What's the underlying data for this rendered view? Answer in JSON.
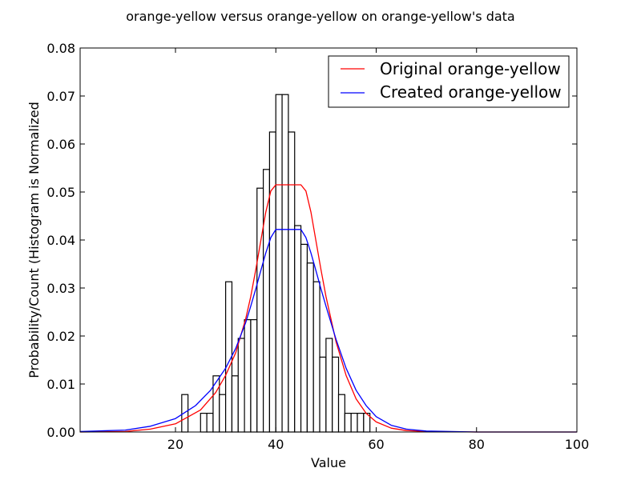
{
  "chart_data": {
    "type": "bar",
    "title": "orange-yellow versus orange-yellow on orange-yellow's data",
    "xlabel": "Value",
    "ylabel": "Probability/Count (Histogram is Normalized",
    "xlim": [
      1,
      100
    ],
    "ylim": [
      0,
      0.08
    ],
    "xticks": [
      "20",
      "40",
      "60",
      "80",
      "100"
    ],
    "yticks": [
      "0.00",
      "0.01",
      "0.02",
      "0.03",
      "0.04",
      "0.05",
      "0.06",
      "0.07",
      "0.08"
    ],
    "grid": false,
    "legend_position": "top-right",
    "bin_width": 1.25,
    "histogram": [
      {
        "start": 21.25,
        "value": 0.0078
      },
      {
        "start": 22.5,
        "value": 0.0
      },
      {
        "start": 23.75,
        "value": 0.0
      },
      {
        "start": 25.0,
        "value": 0.0039
      },
      {
        "start": 26.25,
        "value": 0.0039
      },
      {
        "start": 27.5,
        "value": 0.0117
      },
      {
        "start": 28.75,
        "value": 0.0078
      },
      {
        "start": 30.0,
        "value": 0.0313
      },
      {
        "start": 31.25,
        "value": 0.0117
      },
      {
        "start": 32.5,
        "value": 0.0195
      },
      {
        "start": 33.75,
        "value": 0.0234
      },
      {
        "start": 35.0,
        "value": 0.0234
      },
      {
        "start": 36.25,
        "value": 0.0508
      },
      {
        "start": 37.5,
        "value": 0.0547
      },
      {
        "start": 38.75,
        "value": 0.0625
      },
      {
        "start": 40.0,
        "value": 0.0703
      },
      {
        "start": 41.25,
        "value": 0.0703
      },
      {
        "start": 42.5,
        "value": 0.0625
      },
      {
        "start": 43.75,
        "value": 0.043
      },
      {
        "start": 45.0,
        "value": 0.0391
      },
      {
        "start": 46.25,
        "value": 0.0352
      },
      {
        "start": 47.5,
        "value": 0.0313
      },
      {
        "start": 48.75,
        "value": 0.0156
      },
      {
        "start": 50.0,
        "value": 0.0195
      },
      {
        "start": 51.25,
        "value": 0.0156
      },
      {
        "start": 52.5,
        "value": 0.0078
      },
      {
        "start": 53.75,
        "value": 0.0039
      },
      {
        "start": 55.0,
        "value": 0.0039
      },
      {
        "start": 56.25,
        "value": 0.0039
      },
      {
        "start": 57.5,
        "value": 0.0039
      }
    ],
    "series": [
      {
        "name": "Original orange-yellow",
        "color": "#ff0000",
        "x": [
          1,
          10,
          15,
          20,
          25,
          28,
          30,
          32,
          34,
          35,
          36,
          37,
          38,
          39,
          40,
          42,
          44,
          45,
          46,
          47,
          48,
          49,
          50,
          52,
          54,
          56,
          58,
          60,
          63,
          66,
          70,
          80,
          100
        ],
        "y": [
          0.0,
          0.0001,
          0.0006,
          0.0017,
          0.0046,
          0.0082,
          0.0118,
          0.0165,
          0.0236,
          0.0282,
          0.0338,
          0.0398,
          0.0458,
          0.0502,
          0.0515,
          0.0515,
          0.0515,
          0.0515,
          0.0502,
          0.0458,
          0.0398,
          0.0338,
          0.0282,
          0.0188,
          0.0118,
          0.0069,
          0.0039,
          0.0021,
          0.0008,
          0.0003,
          0.0001,
          0.0,
          0.0
        ]
      },
      {
        "name": "Created orange-yellow",
        "color": "#0000ff",
        "x": [
          1,
          10,
          15,
          20,
          24,
          27,
          30,
          32,
          34,
          35,
          36,
          37,
          38,
          39,
          40,
          42,
          44,
          45,
          46,
          47,
          48,
          49,
          50,
          52,
          54,
          56,
          58,
          60,
          63,
          66,
          70,
          80,
          100
        ],
        "y": [
          0.0001,
          0.0004,
          0.0012,
          0.0028,
          0.0055,
          0.0087,
          0.0133,
          0.0174,
          0.0228,
          0.0262,
          0.0298,
          0.0336,
          0.0373,
          0.0405,
          0.0422,
          0.0422,
          0.0422,
          0.0422,
          0.0405,
          0.0373,
          0.0336,
          0.0298,
          0.0262,
          0.0193,
          0.0133,
          0.0087,
          0.0055,
          0.0032,
          0.0014,
          0.0006,
          0.0002,
          0.0,
          0.0
        ]
      }
    ]
  }
}
